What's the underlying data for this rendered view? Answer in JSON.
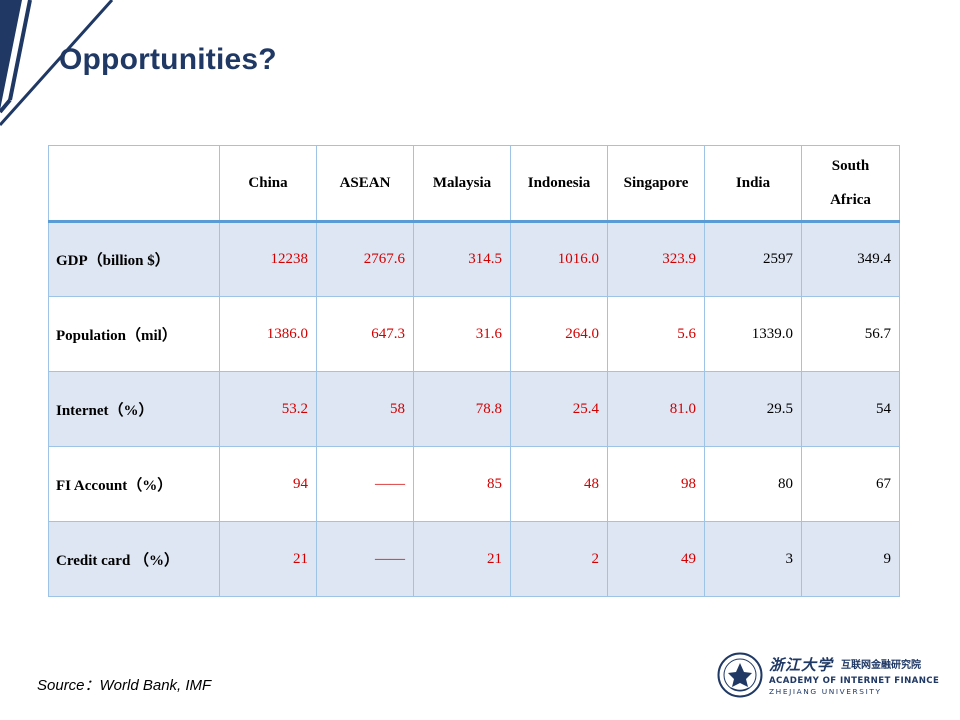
{
  "slide": {
    "title": "Opportunities?",
    "source": "Source：World Bank, IMF"
  },
  "table": {
    "columns": [
      "China",
      "ASEAN",
      "Malaysia",
      "Indonesia",
      "Singapore",
      "India",
      "South Africa"
    ],
    "rows": [
      {
        "label": "GDP（billion $）",
        "values": [
          "12238",
          "2767.6",
          "314.5",
          "1016.0",
          "323.9",
          "2597",
          "349.4"
        ]
      },
      {
        "label": "Population（mil）",
        "values": [
          "1386.0",
          "647.3",
          "31.6",
          "264.0",
          "5.6",
          "1339.0",
          "56.7"
        ]
      },
      {
        "label": "Internet（%）",
        "values": [
          "53.2",
          "58",
          "78.8",
          "25.4",
          "81.0",
          "29.5",
          "54"
        ]
      },
      {
        "label": "FI Account（%）",
        "values": [
          "94",
          "——",
          "85",
          "48",
          "98",
          "80",
          "67"
        ]
      },
      {
        "label": "Credit card （%）",
        "values": [
          "21",
          "——",
          "21",
          "2",
          "49",
          "3",
          "9"
        ]
      }
    ]
  },
  "logo": {
    "cn_name": "浙江大学",
    "cn_institute": "互联网金融研究院",
    "en_line1": "ACADEMY OF INTERNET FINANCE",
    "en_line2": "ZHEJIANG UNIVERSITY"
  },
  "colors": {
    "title": "#1f3864",
    "accent_bar": "#1f3864",
    "highlight_values": "#d00000",
    "row_shade": "#dee6f3",
    "grid": "#9dc3e6"
  }
}
